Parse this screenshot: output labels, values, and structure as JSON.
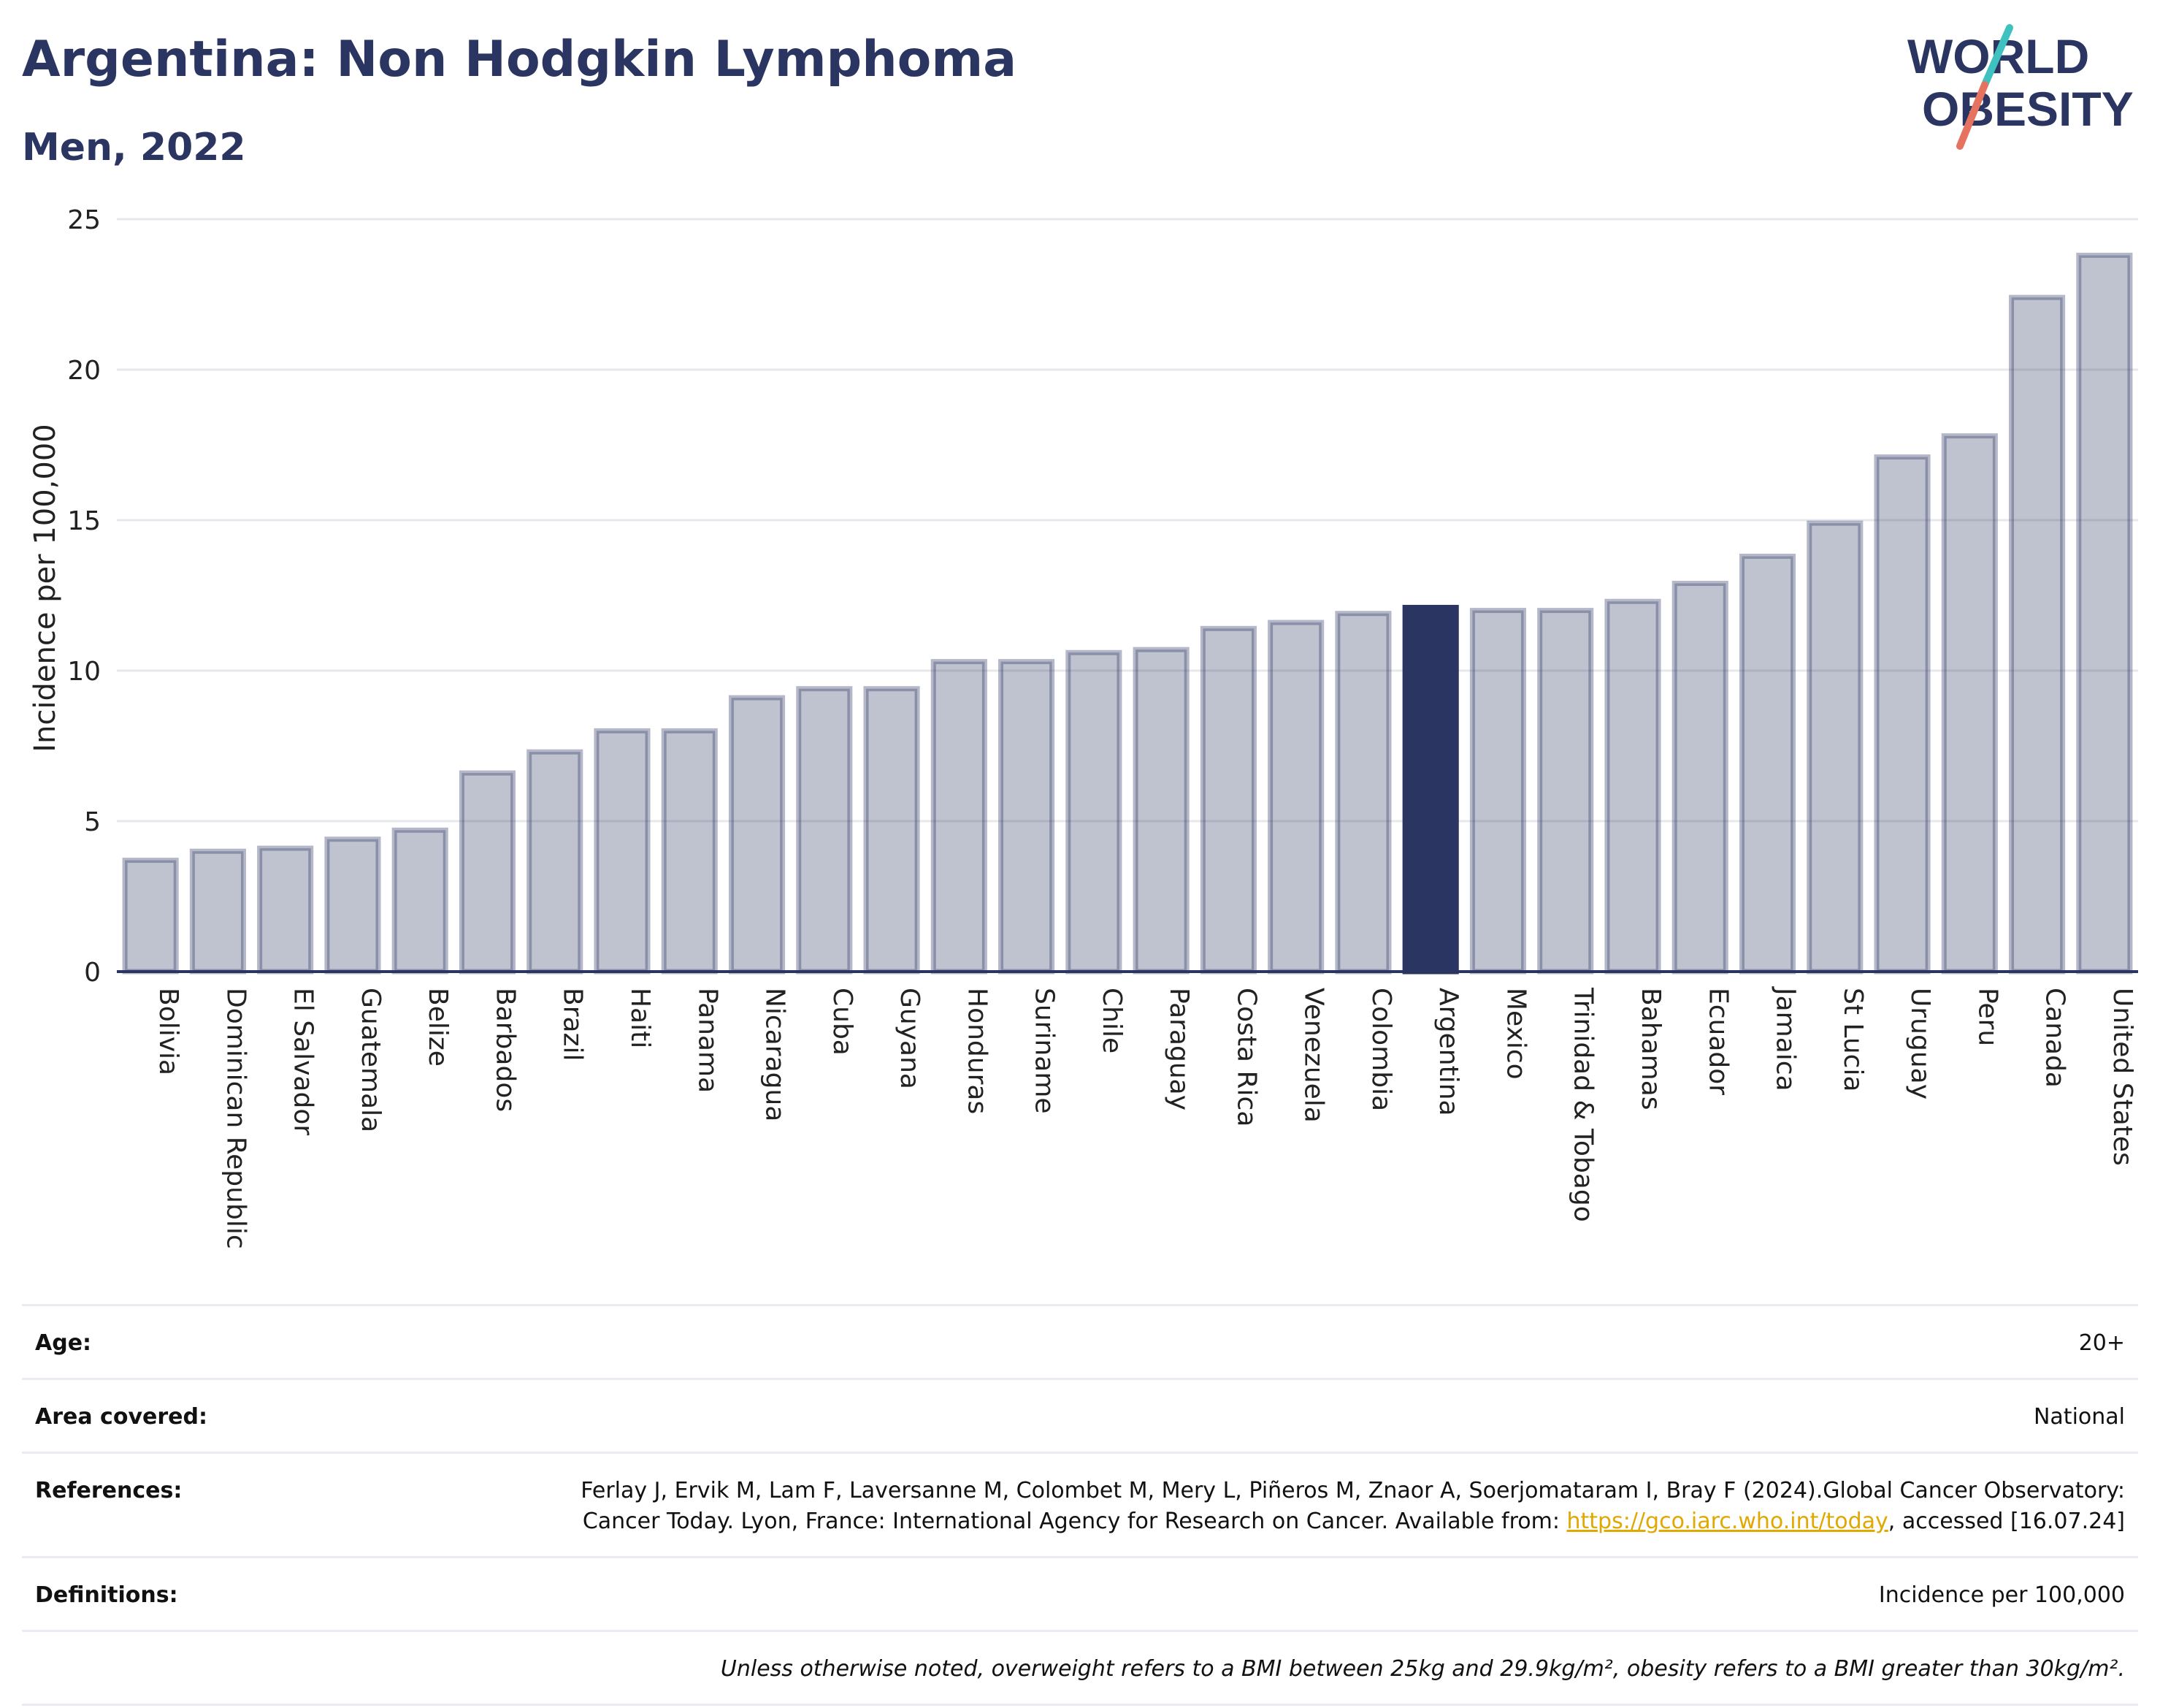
{
  "header": {
    "title": "Argentina: Non Hodgkin Lymphoma",
    "subtitle": "Men, 2022"
  },
  "logo": {
    "line1": "WORLD",
    "line2": "OBESITY",
    "colors": {
      "text": "#2b3561",
      "slash_teal": "#3fc1bf",
      "slash_coral": "#e5735f"
    }
  },
  "chart_data": {
    "type": "bar",
    "ylabel": "Incidence per 100,000",
    "xlabel": "",
    "ylim": [
      0,
      25
    ],
    "yticks": [
      0,
      5,
      10,
      15,
      20,
      25
    ],
    "grid": true,
    "highlight": "Argentina",
    "colors": {
      "bar": "#2b3561",
      "bar_default_fill_opacity": 0.3,
      "highlight": "#2b3561"
    },
    "categories": [
      "Bolivia",
      "Dominican Republic",
      "El Salvador",
      "Guatemala",
      "Belize",
      "Barbados",
      "Brazil",
      "Haiti",
      "Panama",
      "Nicaragua",
      "Cuba",
      "Guyana",
      "Honduras",
      "Suriname",
      "Chile",
      "Paraguay",
      "Costa Rica",
      "Venezuela",
      "Colombia",
      "Argentina",
      "Mexico",
      "Trinidad & Tobago",
      "Bahamas",
      "Ecuador",
      "Jamaica",
      "St Lucia",
      "Uruguay",
      "Peru",
      "Canada",
      "United States"
    ],
    "values": [
      3.7,
      4.0,
      4.1,
      4.4,
      4.7,
      6.6,
      7.3,
      8.0,
      8.0,
      9.1,
      9.4,
      9.4,
      10.3,
      10.3,
      10.6,
      10.7,
      11.4,
      11.6,
      11.9,
      12.1,
      12.0,
      12.0,
      12.3,
      12.9,
      13.8,
      14.9,
      17.1,
      17.8,
      22.4,
      23.8
    ]
  },
  "info": {
    "age_label": "Age:",
    "age_value": "20+",
    "area_label": "Area covered:",
    "area_value": "National",
    "references_label": "References:",
    "references_text": "Ferlay J, Ervik M, Lam F, Laversanne M, Colombet M, Mery L, Piñeros M, Znaor A, Soerjomataram I, Bray F (2024).Global Cancer Observatory: Cancer Today. Lyon, France: International Agency for Research on Cancer. Available from:",
    "references_link": "https://gco.iarc.who.int/today",
    "references_suffix": ", accessed [16.07.24]",
    "definitions_label": "Definitions:",
    "definitions_value": "Incidence per 100,000",
    "note": "Unless otherwise noted, overweight refers to a BMI between 25kg and 29.9kg/m², obesity refers to a BMI greater than 30kg/m²."
  }
}
